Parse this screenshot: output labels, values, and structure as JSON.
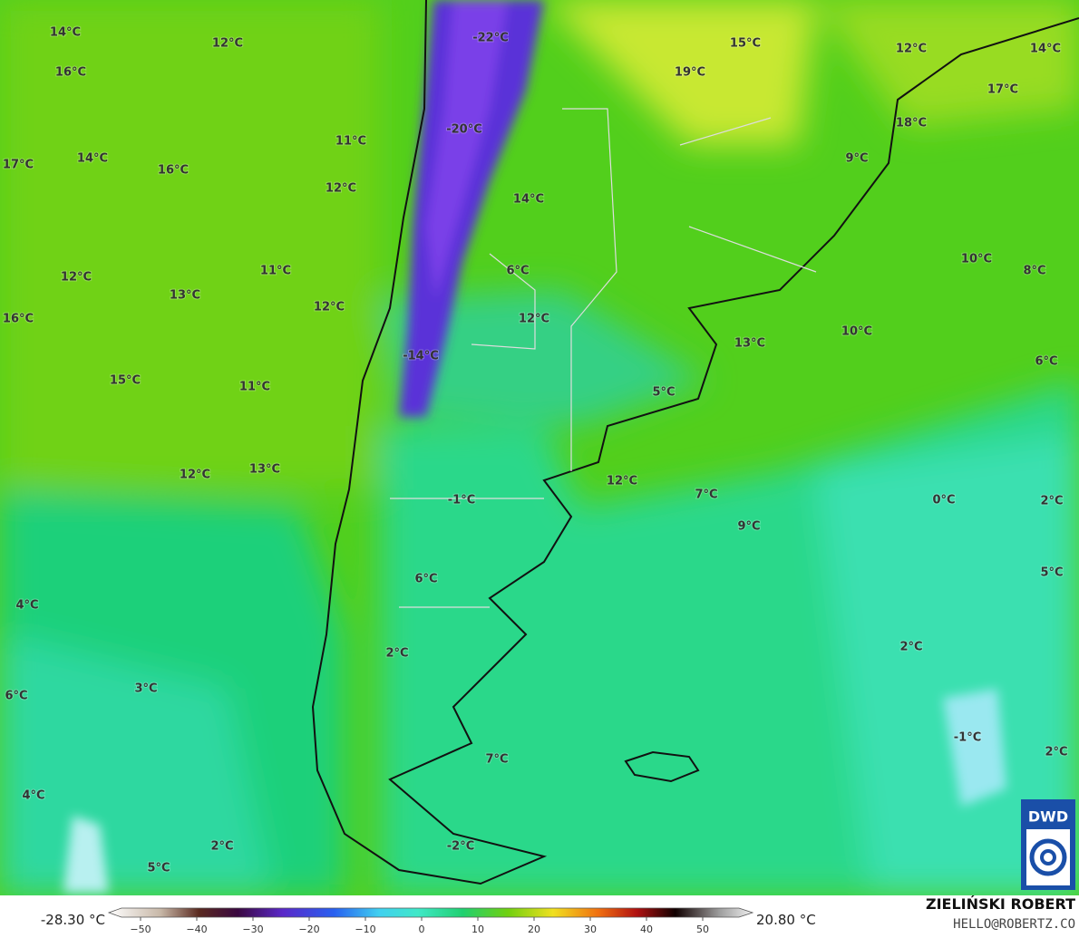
{
  "map": {
    "labels": [
      "-22°C",
      "15°C",
      "14°C",
      "12°C",
      "12°C",
      "14°C",
      "16°C",
      "19°C",
      "17°C",
      "18°C",
      "-20°C",
      "11°C",
      "14°C",
      "9°C",
      "17°C",
      "16°C",
      "12°C",
      "14°C",
      "10°C",
      "11°C",
      "6°C",
      "8°C",
      "12°C",
      "13°C",
      "12°C",
      "12°C",
      "16°C",
      "10°C",
      "13°C",
      "6°C",
      "-14°C",
      "15°C",
      "11°C",
      "5°C",
      "12°C",
      "12°C",
      "13°C",
      "7°C",
      "-1°C",
      "0°C",
      "2°C",
      "9°C",
      "5°C",
      "6°C",
      "4°C",
      "2°C",
      "2°C",
      "3°C",
      "6°C",
      "-1°C",
      "7°C",
      "2°C",
      "4°C",
      "2°C",
      "-2°C",
      "5°C"
    ]
  },
  "colorbar": {
    "min_label": "-28.30 °C",
    "max_label": "20.80 °C",
    "ticks": [
      "−50",
      "−40",
      "−30",
      "−20",
      "−10",
      "0",
      "10",
      "20",
      "30",
      "40",
      "50"
    ]
  },
  "credits": {
    "author": "ZIELIŃSKI ROBERT",
    "contact": "HELLO@ROBERTZ.CO",
    "logo": "DWD"
  }
}
